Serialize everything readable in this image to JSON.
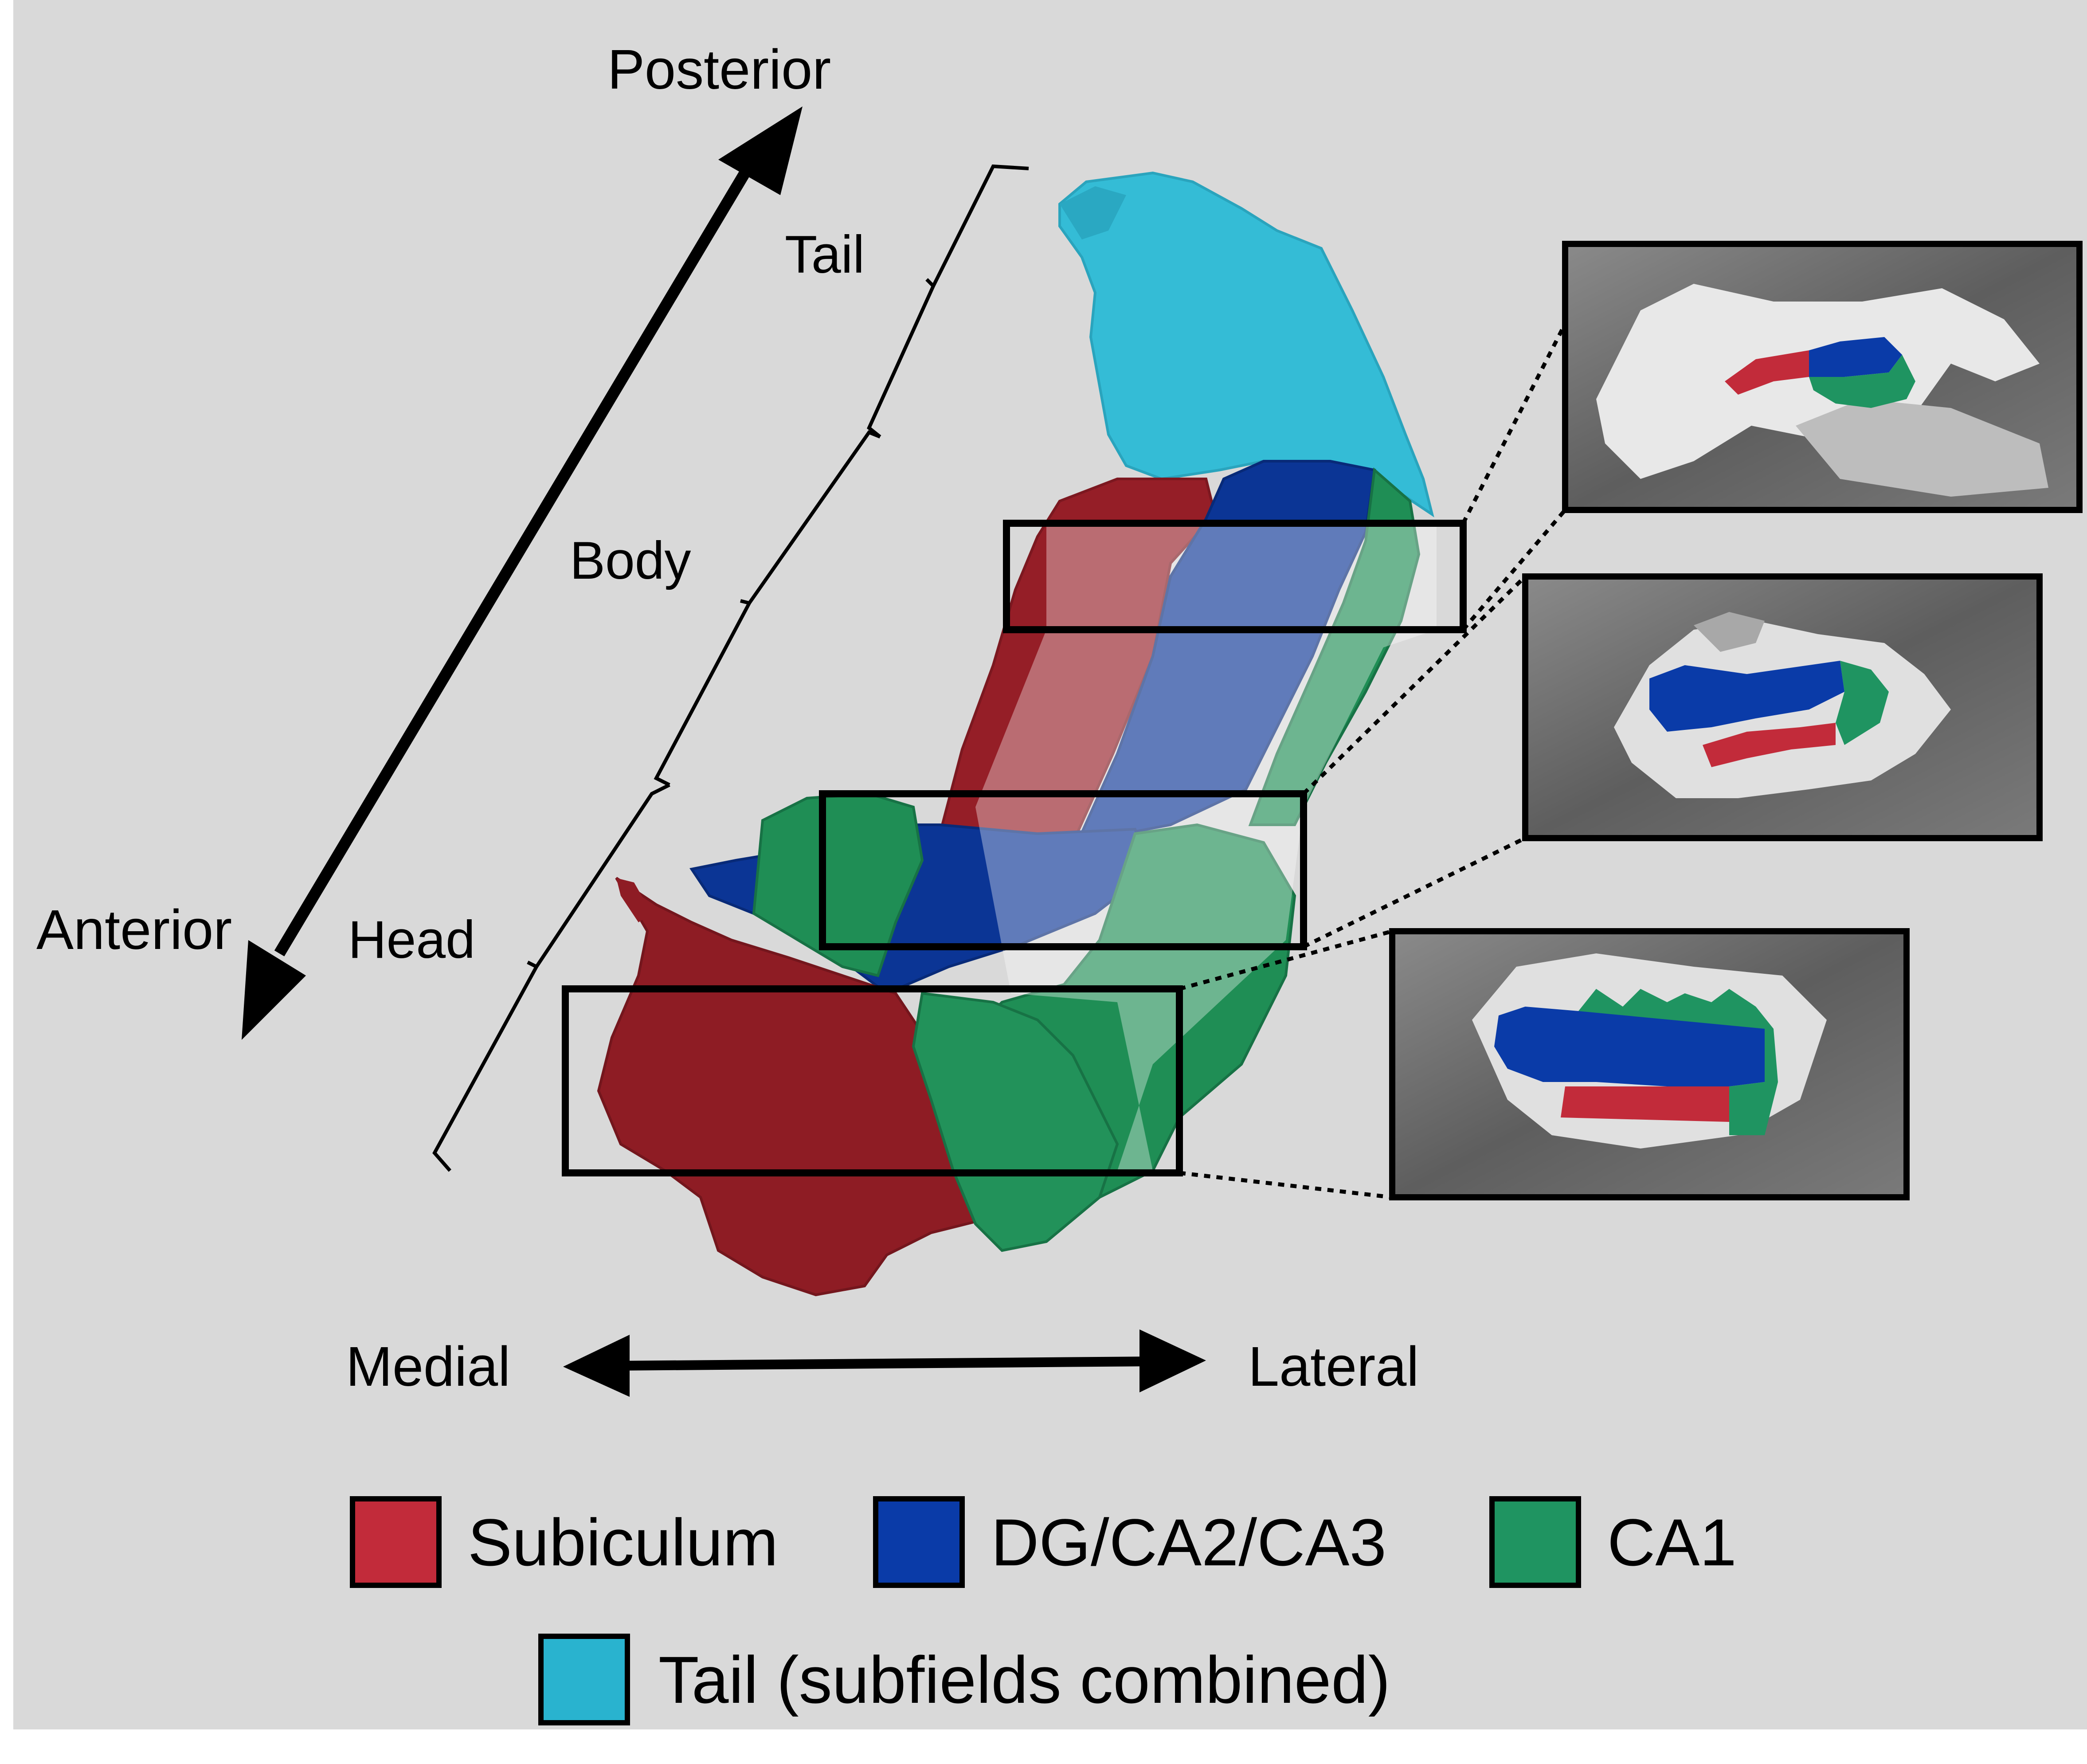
{
  "axes": {
    "posterior": "Posterior",
    "anterior": "Anterior",
    "medial": "Medial",
    "lateral": "Lateral"
  },
  "regions": {
    "tail": "Tail",
    "body": "Body",
    "head": "Head"
  },
  "legend": [
    {
      "label": "Subiculum",
      "color": "#c22b3a"
    },
    {
      "label": "DG/CA2/CA3",
      "color": "#0a3ba8"
    },
    {
      "label": "CA1",
      "color": "#1f9461"
    },
    {
      "label": "Tail (subfields combined)",
      "color": "#29b3cf"
    }
  ],
  "colors": {
    "background": "#d9d9d9",
    "subiculum_surface": "#8e1c24",
    "dg_surface": "#0b3595",
    "ca1_surface": "#22925a",
    "tail_surface": "#34bcd6",
    "mri_background": "#6e6e6e"
  }
}
